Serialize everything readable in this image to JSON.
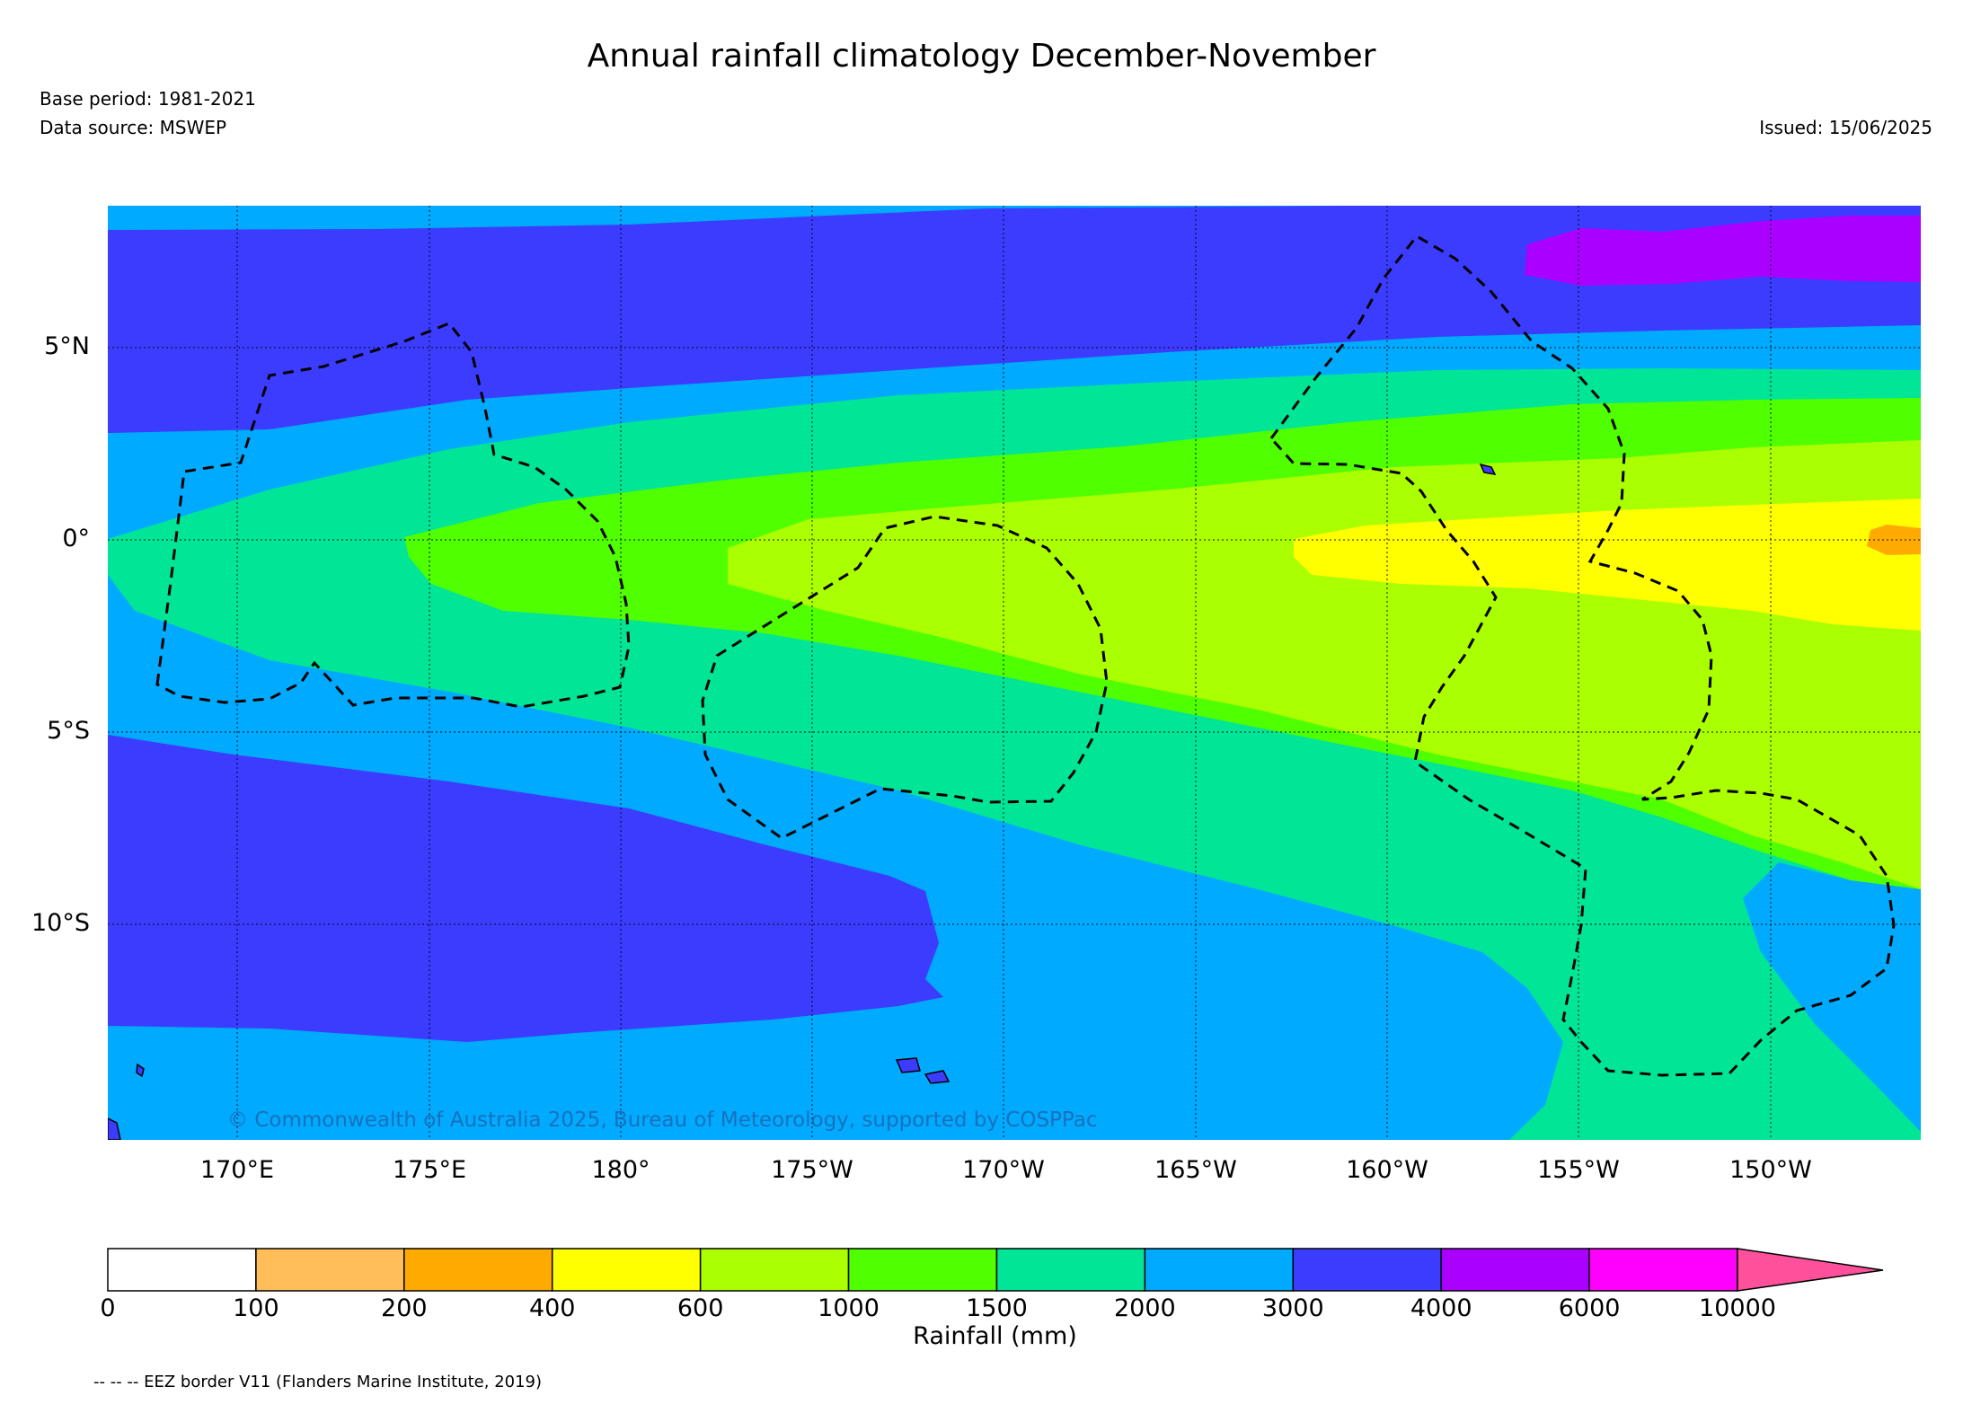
{
  "header": {
    "title": "Annual rainfall climatology December-November",
    "base_period": "Base period: 1981-2021",
    "data_source": "Data source: MSWEP",
    "issued": "Issued: 15/06/2025"
  },
  "map": {
    "region": "Central Pacific",
    "lon_ticks": [
      "170°E",
      "175°E",
      "180°",
      "175°W",
      "170°W",
      "165°W",
      "160°W",
      "155°W",
      "150°W"
    ],
    "lat_ticks": [
      "5°N",
      "0°",
      "5°S",
      "10°S"
    ],
    "copyright": "© Commonwealth of Australia 2025, Bureau of Meteorology, supported by COSPPac",
    "eez_line_style": "dashed",
    "grid_line_style": "dotted"
  },
  "colorbar": {
    "label": "Rainfall (mm)",
    "ticks": [
      "0",
      "100",
      "200",
      "400",
      "600",
      "1000",
      "1500",
      "2000",
      "3000",
      "4000",
      "6000",
      "10000"
    ],
    "colors": [
      "#ffffff",
      "#ffbe5a",
      "#ffaa00",
      "#ffff00",
      "#aaff00",
      "#50ff00",
      "#00e696",
      "#00aaff",
      "#3c3cff",
      "#aa00ff",
      "#ff00ff",
      "#ff509b"
    ],
    "extend": "max"
  },
  "footer": {
    "eez_note": "-- -- -- EEZ border V11 (Flanders Marine Institute, 2019)"
  }
}
